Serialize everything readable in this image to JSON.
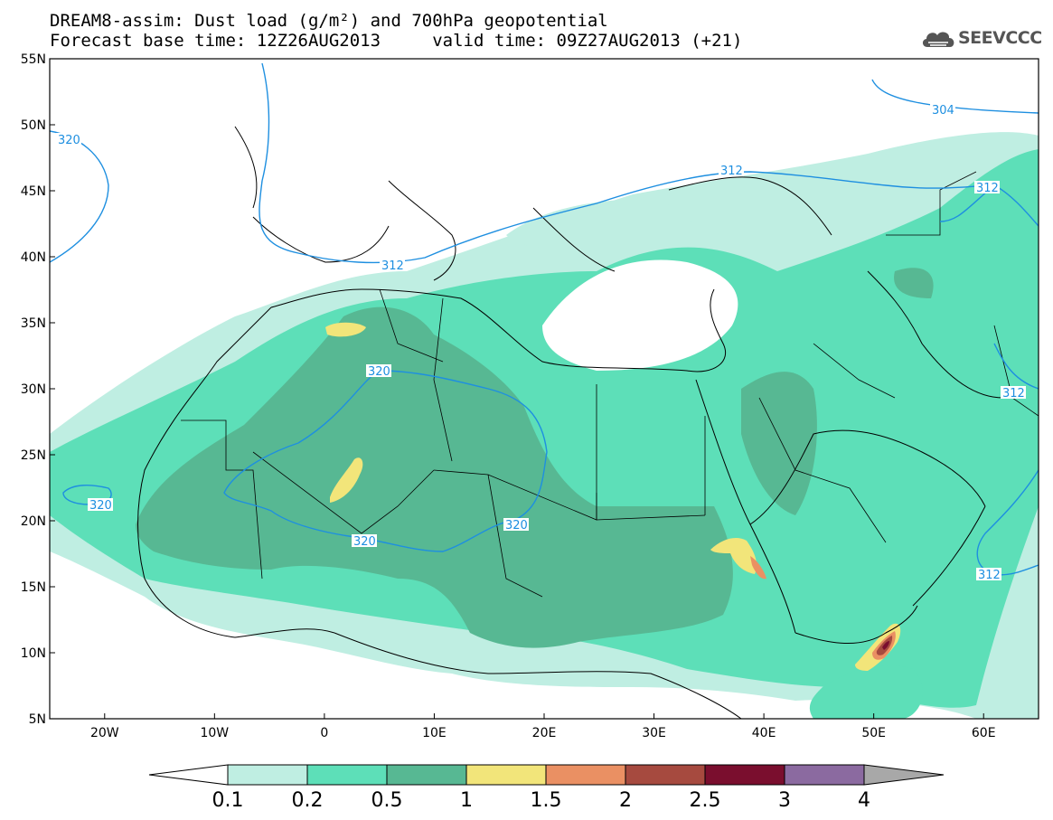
{
  "title": {
    "line1": "DREAM8-assim: Dust load (g/m²) and 700hPa geopotential",
    "line2": "Forecast base time: 12Z26AUG2013     valid time: 09Z27AUG2013 (+21)"
  },
  "logo": {
    "text": "SEEVCCC"
  },
  "map": {
    "lon_range": [
      -25,
      65
    ],
    "lat_range": [
      5,
      55
    ],
    "lat_ticks": [
      "55N",
      "50N",
      "45N",
      "40N",
      "35N",
      "30N",
      "25N",
      "20N",
      "15N",
      "10N",
      "5N"
    ],
    "lon_ticks": [
      "20W",
      "10W",
      "0",
      "10E",
      "20E",
      "30E",
      "40E",
      "50E",
      "60E"
    ]
  },
  "contours": {
    "color": "#1e8fe0",
    "labels": [
      "320",
      "304",
      "312",
      "312",
      "312",
      "320",
      "320",
      "320",
      "320",
      "312",
      "312"
    ]
  },
  "colorbar": {
    "levels": [
      "0.1",
      "0.2",
      "0.5",
      "1",
      "1.5",
      "2",
      "2.5",
      "3",
      "4"
    ],
    "colors": [
      "#bfeee2",
      "#5ddfb8",
      "#57b893",
      "#f2e57a",
      "#ea9063",
      "#a64a3f",
      "#7a0e2e",
      "#8b6aa0",
      "#a8a8a8"
    ]
  },
  "dust_colors": {
    "level_0_1": "#bfeee2",
    "level_0_2": "#5ddfb8",
    "level_0_5": "#57b893",
    "level_1": "#f2e57a",
    "level_1_5": "#ea9063",
    "level_2": "#a64a3f",
    "level_2_5": "#7a0e2e"
  }
}
